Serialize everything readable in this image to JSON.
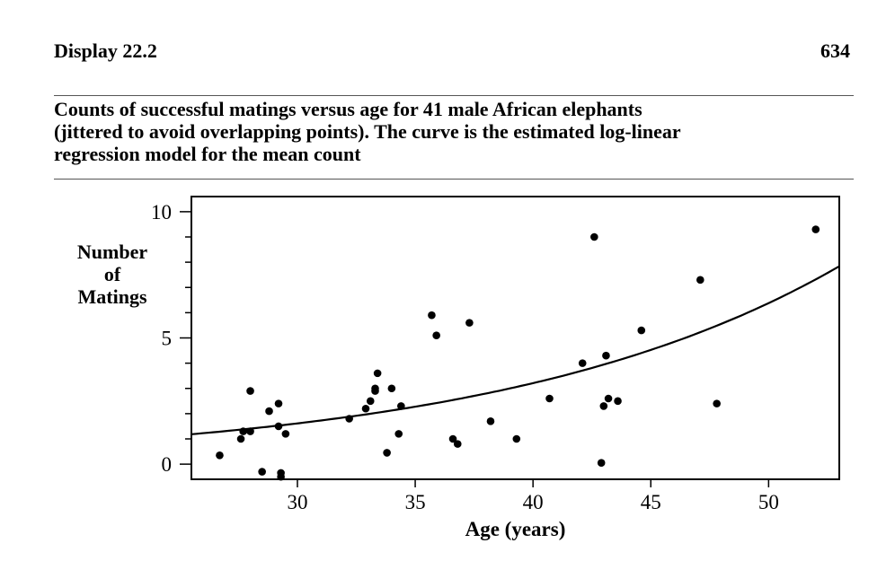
{
  "header": {
    "display_label": "Display 22.2",
    "page_number": "634"
  },
  "caption": {
    "lines": [
      "Counts of successful matings versus age for 41 male African elephants",
      "(jittered to avoid overlapping points). The curve is the estimated log-linear",
      "regression model for the mean count"
    ]
  },
  "chart_data": {
    "type": "scatter",
    "title": "",
    "xlabel": "Age (years)",
    "ylabel_lines": [
      "Number",
      "of",
      "Matings"
    ],
    "xlim": [
      25.5,
      53
    ],
    "ylim": [
      -0.6,
      10.6
    ],
    "xticks": [
      30,
      35,
      40,
      45,
      50
    ],
    "xtick_labels": [
      "30",
      "35",
      "40",
      "45",
      "50"
    ],
    "yticks": [
      0,
      5,
      10
    ],
    "ytick_labels": [
      "0",
      "5",
      "10"
    ],
    "yminor_ticks": [
      1,
      2,
      3,
      4,
      6,
      7,
      8,
      9
    ],
    "grid": false,
    "legend": "none",
    "points": [
      {
        "x": 26.7,
        "y": 0.35
      },
      {
        "x": 27.6,
        "y": 1.0
      },
      {
        "x": 27.7,
        "y": 1.3
      },
      {
        "x": 28.0,
        "y": 2.9
      },
      {
        "x": 28.0,
        "y": 1.3
      },
      {
        "x": 28.5,
        "y": -0.3
      },
      {
        "x": 28.8,
        "y": 2.1
      },
      {
        "x": 29.2,
        "y": 2.4
      },
      {
        "x": 29.2,
        "y": 1.5
      },
      {
        "x": 29.3,
        "y": -0.35
      },
      {
        "x": 29.3,
        "y": -0.5
      },
      {
        "x": 29.5,
        "y": 1.2
      },
      {
        "x": 32.2,
        "y": 1.8
      },
      {
        "x": 32.9,
        "y": 2.2
      },
      {
        "x": 33.1,
        "y": 2.5
      },
      {
        "x": 33.3,
        "y": 3.0
      },
      {
        "x": 33.3,
        "y": 2.9
      },
      {
        "x": 33.4,
        "y": 3.6
      },
      {
        "x": 33.8,
        "y": 0.45
      },
      {
        "x": 34.0,
        "y": 3.0
      },
      {
        "x": 34.3,
        "y": 1.2
      },
      {
        "x": 34.4,
        "y": 2.3
      },
      {
        "x": 35.7,
        "y": 5.9
      },
      {
        "x": 35.9,
        "y": 5.1
      },
      {
        "x": 36.6,
        "y": 1.0
      },
      {
        "x": 36.8,
        "y": 0.8
      },
      {
        "x": 37.3,
        "y": 5.6
      },
      {
        "x": 38.2,
        "y": 1.7
      },
      {
        "x": 39.3,
        "y": 1.0
      },
      {
        "x": 40.7,
        "y": 2.6
      },
      {
        "x": 42.1,
        "y": 4.0
      },
      {
        "x": 42.6,
        "y": 9.0
      },
      {
        "x": 42.9,
        "y": 0.05
      },
      {
        "x": 43.0,
        "y": 2.3
      },
      {
        "x": 43.1,
        "y": 4.3
      },
      {
        "x": 43.2,
        "y": 2.6
      },
      {
        "x": 43.6,
        "y": 2.5
      },
      {
        "x": 44.6,
        "y": 5.3
      },
      {
        "x": 47.1,
        "y": 7.3
      },
      {
        "x": 47.8,
        "y": 2.4
      },
      {
        "x": 52.0,
        "y": 9.3
      }
    ],
    "curve": {
      "model": "log-linear",
      "intercept": -1.582,
      "slope": 0.0687
    },
    "colors": {
      "points": "#000000",
      "curve": "#000000",
      "axes": "#000000"
    }
  }
}
